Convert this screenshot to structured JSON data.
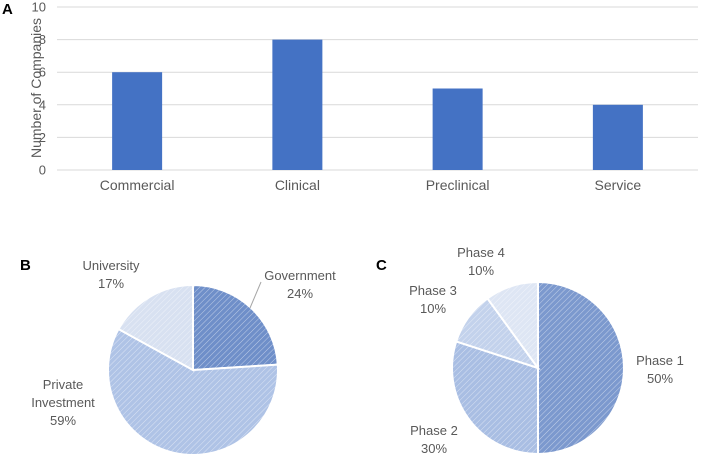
{
  "panels": {
    "a": "A",
    "b": "B",
    "c": "C"
  },
  "colors": {
    "bar": "#4472C4",
    "grid": "#D9D9D9",
    "slice_stroke": "#FFFFFF"
  },
  "chart_data": [
    {
      "type": "bar",
      "categories": [
        "Commercial",
        "Clinical",
        "Preclinical",
        "Service"
      ],
      "values": [
        6,
        8,
        5,
        4
      ],
      "ylabel": "Number of Companies",
      "ylim": [
        0,
        10
      ],
      "yticks": [
        0,
        2,
        4,
        6,
        8,
        10
      ],
      "grid": true
    },
    {
      "type": "pie",
      "slices": [
        {
          "label": "Government",
          "value": 24,
          "pct": "24%",
          "fill": "#6F8FC9"
        },
        {
          "label": "Private Investment",
          "value": 59,
          "pct": "59%",
          "fill": "#AFC3E6"
        },
        {
          "label": "University",
          "value": 17,
          "pct": "17%",
          "fill": "#D8E1F1"
        }
      ],
      "legend": "none"
    },
    {
      "type": "pie",
      "slices": [
        {
          "label": "Phase 1",
          "value": 50,
          "pct": "50%",
          "fill": "#7C99CE"
        },
        {
          "label": "Phase 2",
          "value": 30,
          "pct": "30%",
          "fill": "#A9BEE3"
        },
        {
          "label": "Phase 3",
          "value": 10,
          "pct": "10%",
          "fill": "#C3D2EC"
        },
        {
          "label": "Phase 4",
          "value": 10,
          "pct": "10%",
          "fill": "#DEE6F4"
        }
      ],
      "legend": "none"
    }
  ]
}
